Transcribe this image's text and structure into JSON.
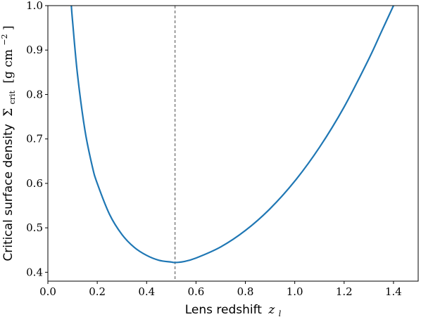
{
  "chart_data": {
    "type": "line",
    "xlabel": "Lens redshift",
    "xlabel_symbol": "z",
    "xlabel_sub": "l",
    "ylabel_text": "Critical surface density",
    "ylabel_symbol": "Σ",
    "ylabel_sub": "crit",
    "ylabel_units": "[g cm",
    "ylabel_units_sup": "−2",
    "ylabel_units_close": "]",
    "xlim": [
      0.0,
      1.5
    ],
    "ylim": [
      0.38,
      1.0
    ],
    "xticks": [
      0.0,
      0.2,
      0.4,
      0.6,
      0.8,
      1.0,
      1.2,
      1.4
    ],
    "xtick_labels": [
      "0.0",
      "0.2",
      "0.4",
      "0.6",
      "0.8",
      "1.0",
      "1.2",
      "1.4"
    ],
    "yticks": [
      0.4,
      0.5,
      0.6,
      0.7,
      0.8,
      0.9,
      1.0
    ],
    "ytick_labels": [
      "0.4",
      "0.5",
      "0.6",
      "0.7",
      "0.8",
      "0.9",
      "1.0"
    ],
    "grid": false,
    "series": [
      {
        "color": "#1f77b4",
        "x": [
          0.095,
          0.1,
          0.12,
          0.15,
          0.18,
          0.2,
          0.25,
          0.3,
          0.35,
          0.4,
          0.45,
          0.5,
          0.515,
          0.55,
          0.6,
          0.7,
          0.8,
          0.9,
          1.0,
          1.1,
          1.2,
          1.3,
          1.35,
          1.4
        ],
        "y": [
          1.0,
          0.965,
          0.845,
          0.72,
          0.638,
          0.6,
          0.53,
          0.485,
          0.456,
          0.438,
          0.427,
          0.423,
          0.422,
          0.424,
          0.432,
          0.457,
          0.494,
          0.543,
          0.605,
          0.681,
          0.772,
          0.88,
          0.94,
          1.0
        ]
      }
    ],
    "vline": {
      "x": 0.515,
      "color": "#808080",
      "style": "dashed"
    }
  }
}
